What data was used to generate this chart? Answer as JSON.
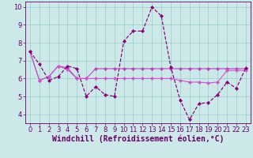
{
  "xlabel": "Windchill (Refroidissement éolien,°C)",
  "background_color": "#cce8e8",
  "line1_x": [
    0,
    1,
    2,
    3,
    4,
    5,
    6,
    7,
    8,
    9,
    10,
    11,
    12,
    13,
    14,
    15,
    16,
    17,
    18,
    19,
    20,
    21,
    22,
    23
  ],
  "line1_y": [
    7.5,
    6.8,
    5.9,
    6.1,
    6.7,
    6.55,
    5.0,
    5.55,
    5.1,
    5.0,
    8.1,
    8.65,
    8.65,
    10.0,
    9.5,
    6.65,
    4.8,
    3.7,
    4.6,
    4.65,
    5.1,
    5.8,
    5.45,
    6.6
  ],
  "line2_x": [
    0,
    1,
    2,
    3,
    4,
    5,
    6,
    7,
    8,
    9,
    10,
    11,
    12,
    13,
    14,
    15,
    16,
    17,
    18,
    19,
    20,
    21,
    22,
    23
  ],
  "line2_y": [
    7.5,
    5.9,
    6.1,
    6.7,
    6.6,
    6.0,
    6.0,
    6.55,
    6.55,
    6.55,
    6.55,
    6.55,
    6.55,
    6.55,
    6.55,
    6.55,
    6.55,
    6.55,
    6.55,
    6.55,
    6.55,
    6.55,
    6.55,
    6.55
  ],
  "line3_x": [
    0,
    1,
    2,
    3,
    4,
    5,
    6,
    7,
    8,
    9,
    10,
    11,
    12,
    13,
    14,
    15,
    16,
    17,
    18,
    19,
    20,
    21,
    22,
    23
  ],
  "line3_y": [
    7.5,
    5.9,
    6.1,
    6.7,
    6.5,
    6.0,
    6.0,
    6.0,
    6.0,
    6.0,
    6.0,
    6.0,
    6.0,
    6.0,
    6.0,
    6.0,
    5.9,
    5.8,
    5.8,
    5.75,
    5.8,
    6.45,
    6.45,
    6.45
  ],
  "line_color1": "#880077",
  "line_color2": "#bb44bb",
  "line_color3": "#cc55cc",
  "marker": "D",
  "markersize": 2.2,
  "ylim": [
    3.5,
    10.3
  ],
  "xlim": [
    -0.5,
    23.5
  ],
  "yticks": [
    4,
    5,
    6,
    7,
    8,
    9,
    10
  ],
  "xticks": [
    0,
    1,
    2,
    3,
    4,
    5,
    6,
    7,
    8,
    9,
    10,
    11,
    12,
    13,
    14,
    15,
    16,
    17,
    18,
    19,
    20,
    21,
    22,
    23
  ],
  "grid_color": "#99cccc",
  "font_color": "#660066",
  "tick_fontsize": 6,
  "xlabel_fontsize": 7
}
